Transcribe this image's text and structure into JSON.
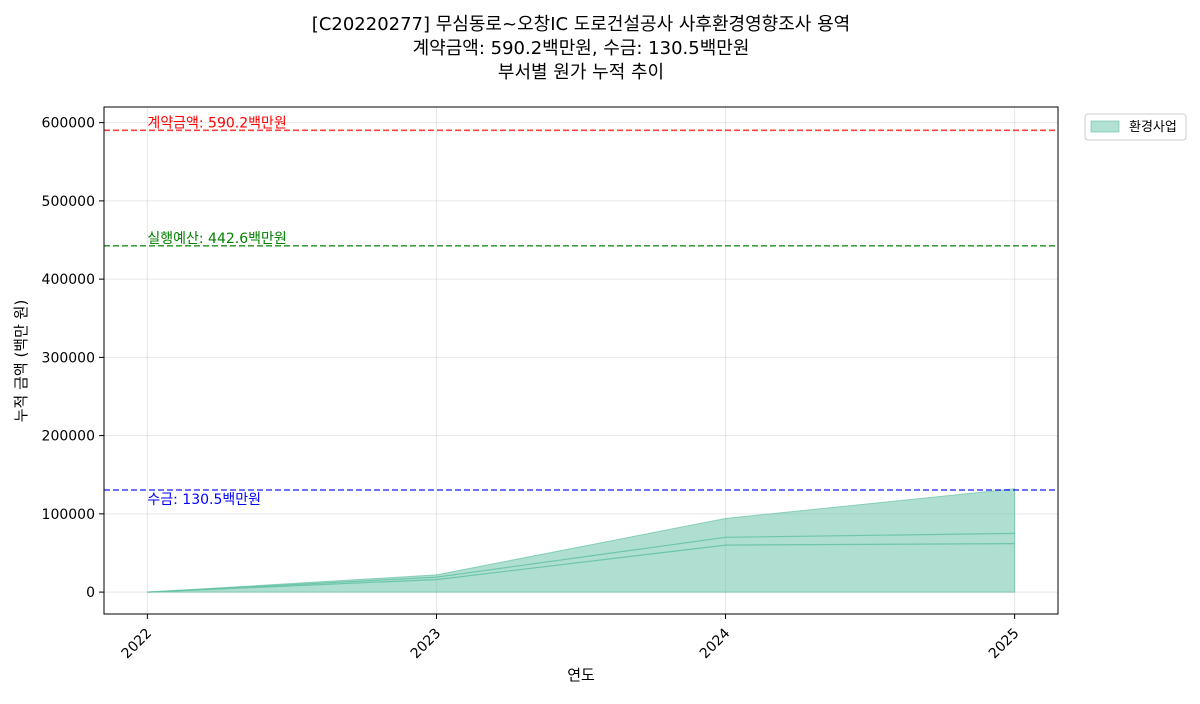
{
  "chart_data": {
    "type": "area",
    "title": "[C20220277] 무심동로~오창IC 도로건설공사 사후환경영향조사 용역",
    "subtitle_lines": [
      "계약금액: 590.2백만원, 수금: 130.5백만원",
      "부서별 원가 누적 추이"
    ],
    "xlabel": "연도",
    "ylabel": "누적 금액 (백만 원)",
    "x": [
      2022,
      2023,
      2024,
      2025
    ],
    "x_tick_labels": [
      "2022",
      "2023",
      "2024",
      "2025"
    ],
    "xlim": [
      2021.85,
      2025.15
    ],
    "ylim": [
      -28000,
      620000
    ],
    "y_ticks": [
      0,
      100000,
      200000,
      300000,
      400000,
      500000,
      600000
    ],
    "y_tick_labels": [
      "0",
      "100000",
      "200000",
      "300000",
      "400000",
      "500000",
      "600000"
    ],
    "grid": true,
    "legend_position": "outside-top-right",
    "series": [
      {
        "name": "환경사업",
        "color": "#66c2a5",
        "values": [
          0,
          22000,
          94000,
          132000
        ],
        "inner_lines": [
          [
            0,
            16000,
            60000,
            62000
          ],
          [
            0,
            19000,
            70000,
            75000
          ]
        ]
      }
    ],
    "reference_lines": [
      {
        "label": "계약금액: 590.2백만원",
        "value": 590200,
        "color": "#ff0000",
        "label_position": "above"
      },
      {
        "label": "실행예산: 442.6백만원",
        "value": 442600,
        "color": "#008000",
        "label_position": "above"
      },
      {
        "label": "수금: 130.5백만원",
        "value": 130500,
        "color": "#0000ff",
        "label_position": "below"
      }
    ]
  }
}
